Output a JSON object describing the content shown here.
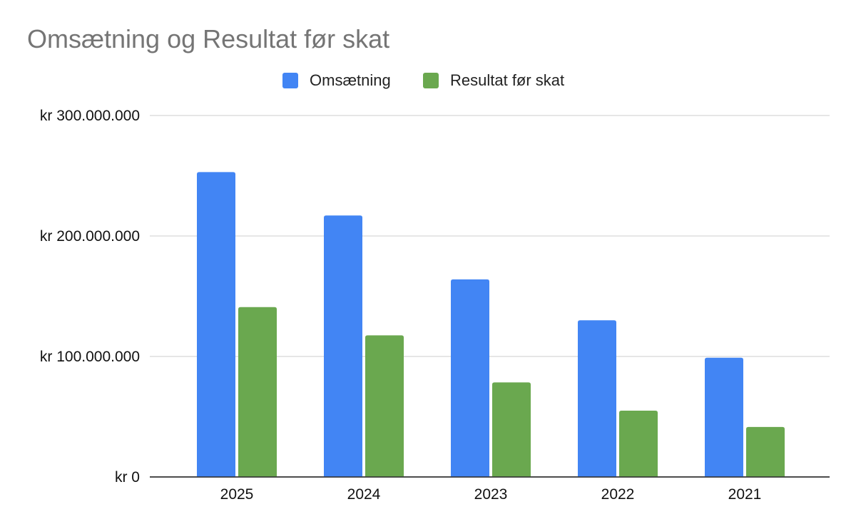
{
  "chart_data": {
    "type": "bar",
    "title": "Omsætning og Resultat før skat",
    "xlabel": "",
    "ylabel": "",
    "categories": [
      "2025",
      "2024",
      "2023",
      "2022",
      "2021"
    ],
    "series": [
      {
        "name": "Omsætning",
        "color": "#4285F4",
        "values": [
          253000000,
          217000000,
          164000000,
          130000000,
          99000000
        ]
      },
      {
        "name": "Resultat før skat",
        "color": "#6AA84F",
        "values": [
          141000000,
          117500000,
          78500000,
          55000000,
          41500000
        ]
      }
    ],
    "ylim": [
      0,
      300000000
    ],
    "yticks": [
      0,
      100000000,
      200000000,
      300000000
    ],
    "ytick_labels": [
      "kr 0",
      "kr 100.000.000",
      "kr 200.000.000",
      "kr 300.000.000"
    ],
    "grid": true,
    "legend_position": "top-center"
  }
}
